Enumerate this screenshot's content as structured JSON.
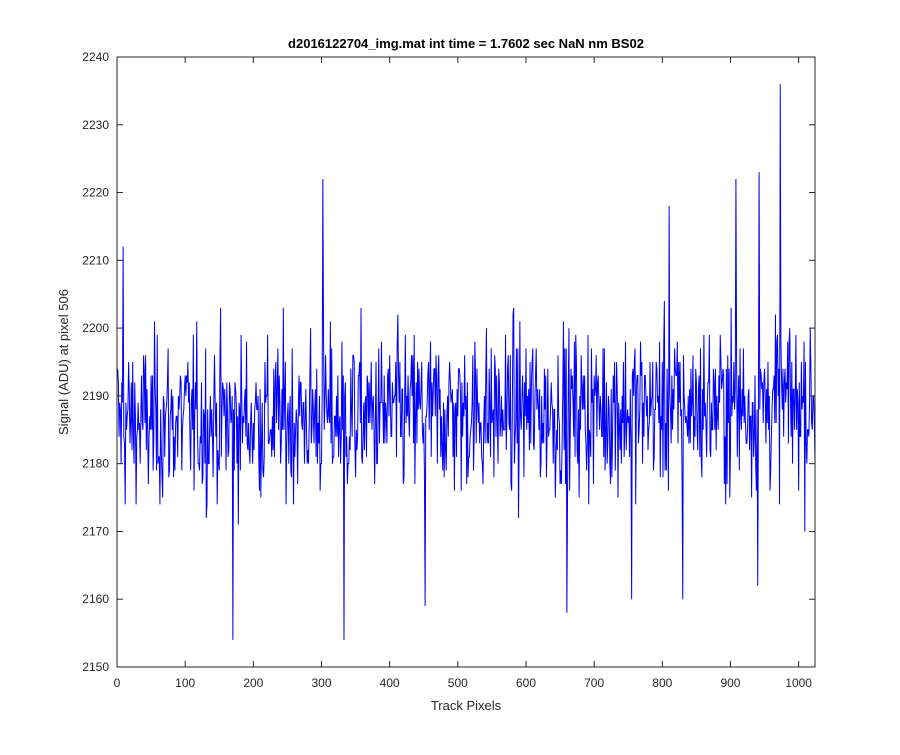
{
  "chart_data": {
    "type": "line",
    "title": "d2016122704_img.mat int time = 1.7602 sec  NaN nm BS02",
    "xlabel": "Track Pixels",
    "ylabel": "Signal (ADU) at pixel 506",
    "xlim": [
      0,
      1024
    ],
    "ylim": [
      2150,
      2240
    ],
    "xticks": [
      0,
      100,
      200,
      300,
      400,
      500,
      600,
      700,
      800,
      900,
      1000
    ],
    "yticks": [
      2150,
      2160,
      2170,
      2180,
      2190,
      2200,
      2210,
      2220,
      2230,
      2240
    ],
    "grid": false,
    "line_color": "#0000ff",
    "series": [
      {
        "x_start": 1,
        "x_step": 1,
        "count": 1024,
        "summary": "noisy signal fluctuating mostly between 2165 and 2210; spikes noted below",
        "notable_points": [
          {
            "x": 9,
            "y": 2212
          },
          {
            "x": 170,
            "y": 2154
          },
          {
            "x": 302,
            "y": 2222
          },
          {
            "x": 333,
            "y": 2154
          },
          {
            "x": 452,
            "y": 2159
          },
          {
            "x": 660,
            "y": 2158
          },
          {
            "x": 755,
            "y": 2160
          },
          {
            "x": 810,
            "y": 2218
          },
          {
            "x": 830,
            "y": 2160
          },
          {
            "x": 908,
            "y": 2222
          },
          {
            "x": 940,
            "y": 2162
          },
          {
            "x": 942,
            "y": 2223
          },
          {
            "x": 973,
            "y": 2236
          }
        ]
      }
    ]
  }
}
